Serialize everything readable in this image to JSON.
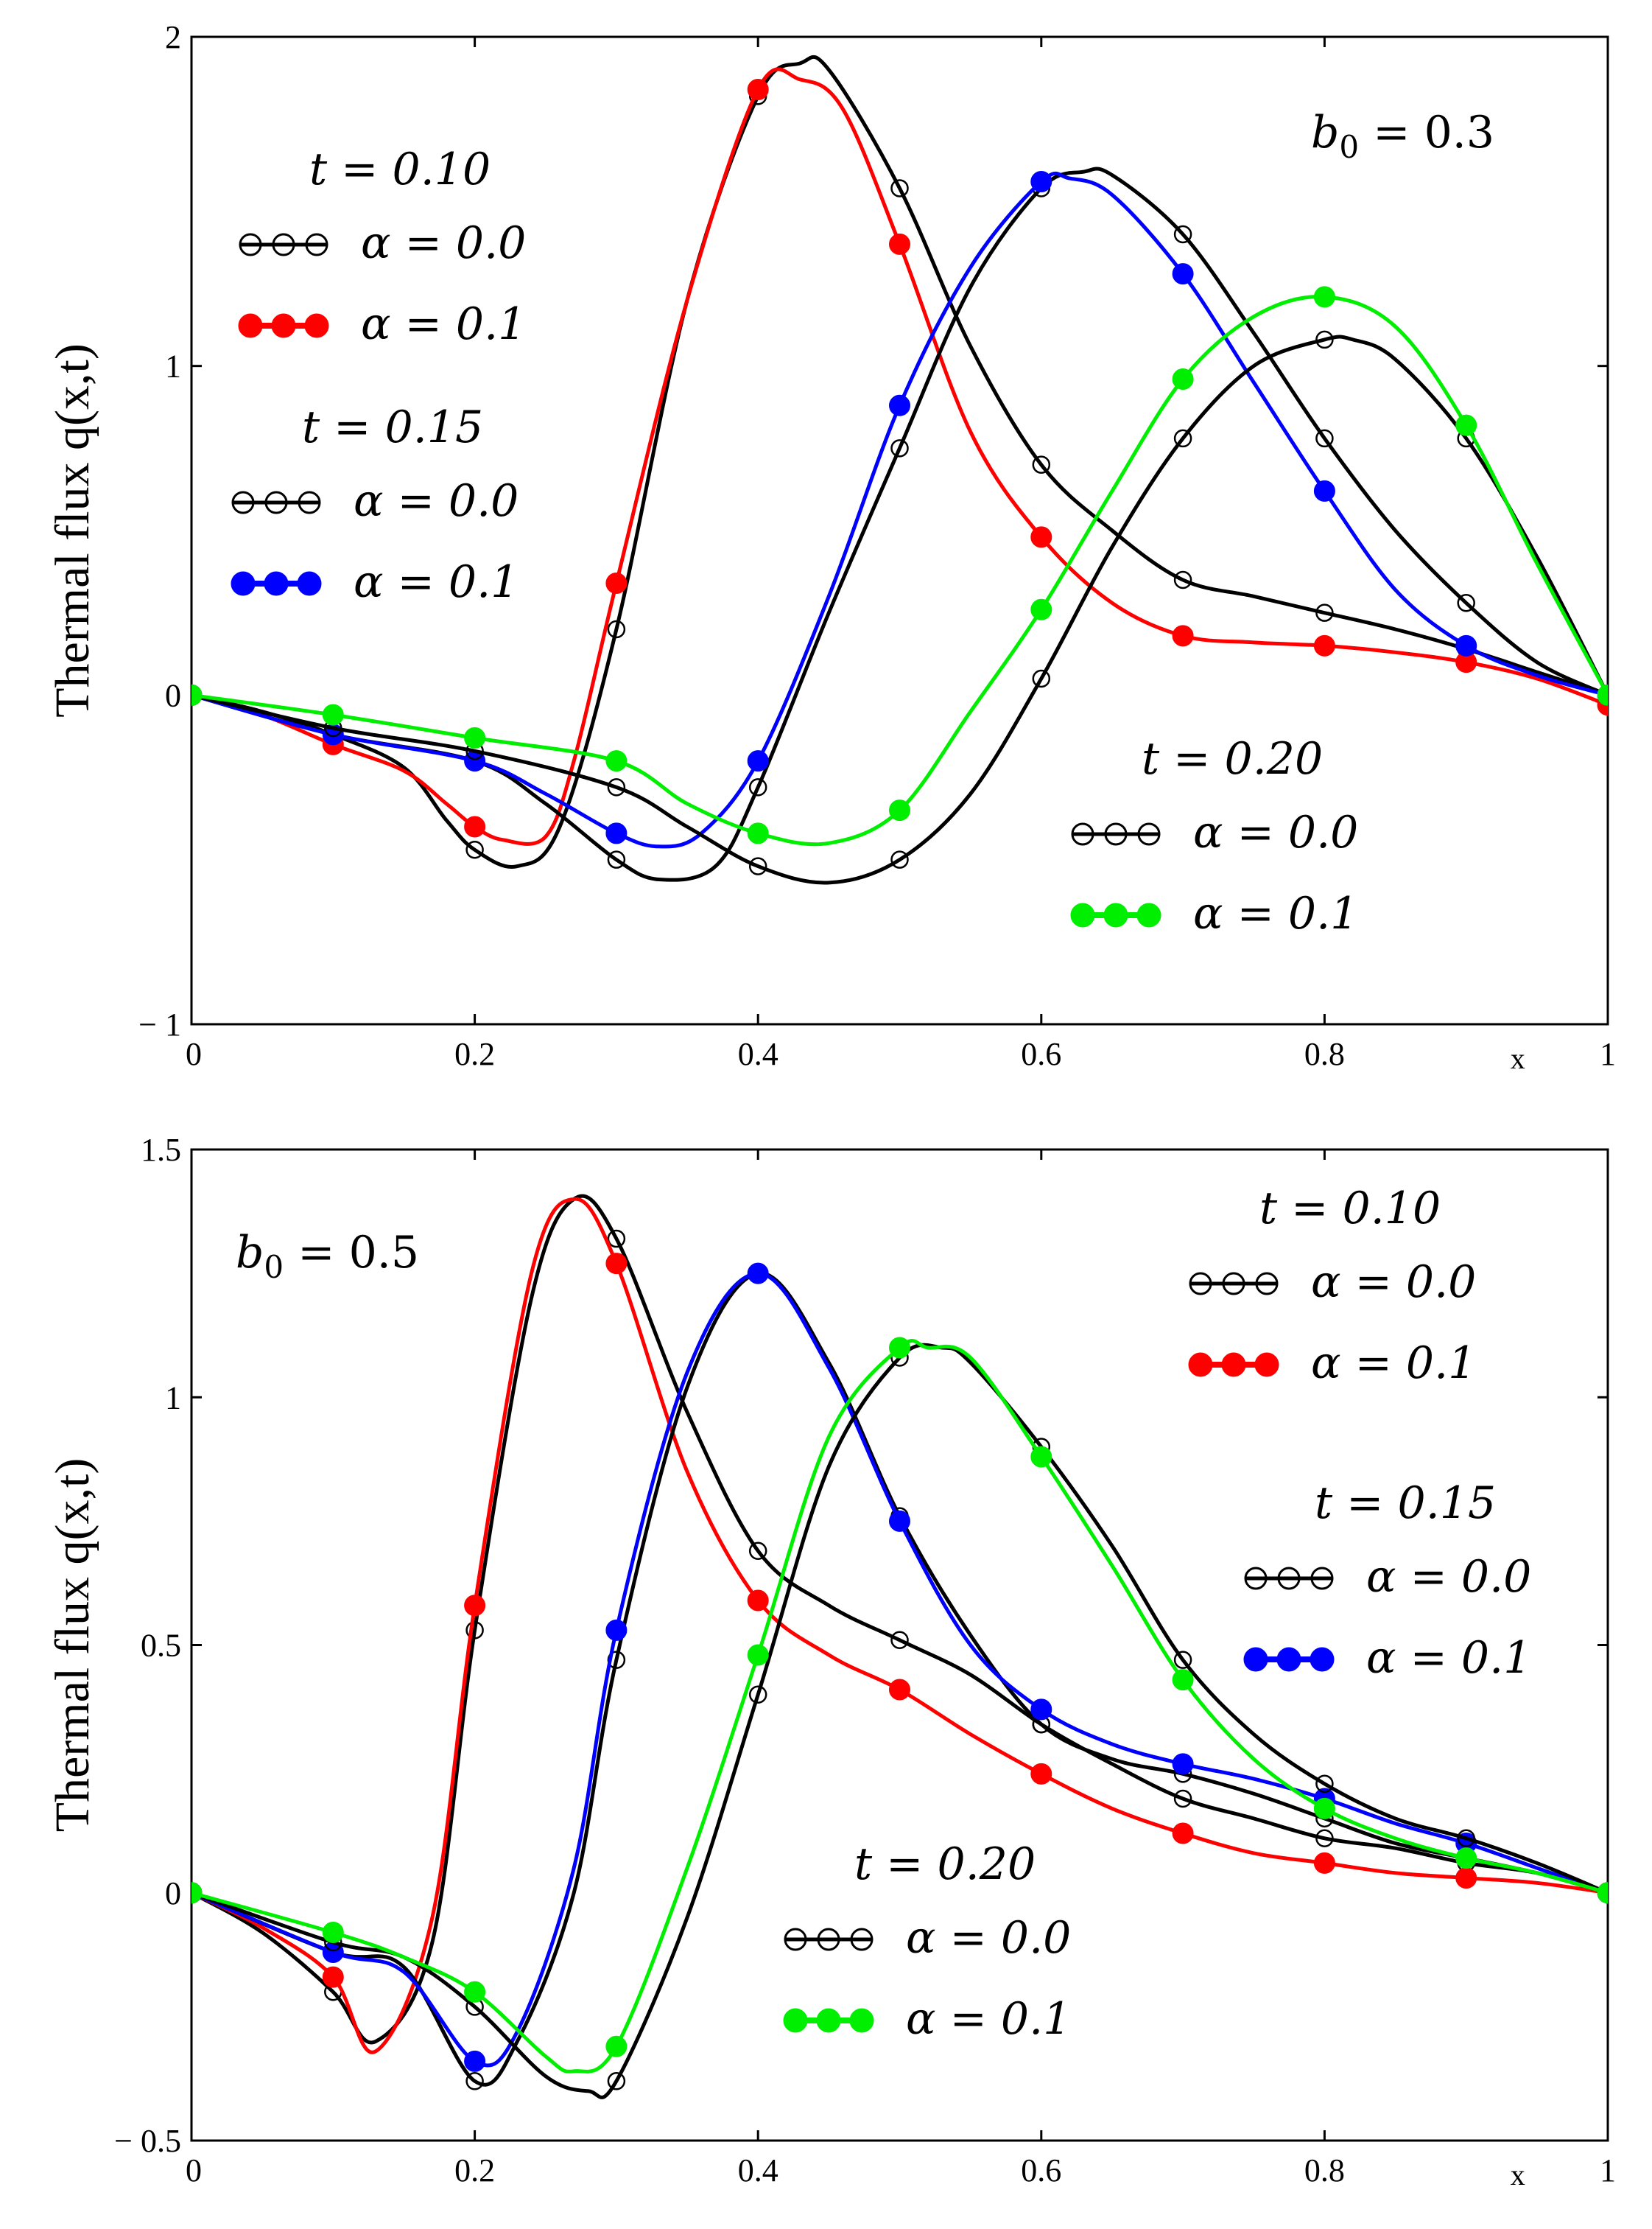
{
  "chart_data": [
    {
      "type": "line",
      "ylabel": "Thermal flux q(x,t)",
      "xlabel": "x",
      "xlim": [
        0,
        1
      ],
      "ylim": [
        -1,
        2
      ],
      "xticks": [
        "0",
        "0.2",
        "0.4",
        "0.6",
        "0.8",
        "1"
      ],
      "yticks": [
        "− 1",
        "0",
        "1",
        "2"
      ],
      "annotation": {
        "sym": "b",
        "sub": "0",
        "rest": " = 0.3"
      },
      "legend_groups": [
        {
          "title": "t = 0.10",
          "items": [
            "α = 0.0",
            "α = 0.1"
          ]
        },
        {
          "title": "t = 0.15",
          "items": [
            "α = 0.0",
            "α = 0.1"
          ]
        },
        {
          "title": "t = 0.20",
          "items": [
            "α = 0.0",
            "α = 0.1"
          ]
        }
      ],
      "colors": {
        "alpha0": "#000000",
        "t010": "#ff0000",
        "t015": "#0000ff",
        "t020": "#00ee00"
      },
      "series": [
        {
          "t": "0.10",
          "alpha": "0.0",
          "marker": "open",
          "color": "#000000",
          "x": [
            0,
            0.05,
            0.1,
            0.15,
            0.18,
            0.2,
            0.23,
            0.26,
            0.3,
            0.35,
            0.4,
            0.43,
            0.45,
            0.5,
            0.55,
            0.6,
            0.65,
            0.7,
            0.75,
            0.8,
            0.85,
            0.9,
            0.95,
            1.0
          ],
          "y": [
            0,
            -0.05,
            -0.12,
            -0.22,
            -0.38,
            -0.47,
            -0.52,
            -0.4,
            0.2,
            1.2,
            1.82,
            1.92,
            1.9,
            1.54,
            1.06,
            0.7,
            0.5,
            0.35,
            0.3,
            0.25,
            0.2,
            0.14,
            0.07,
            0
          ]
        },
        {
          "t": "0.10",
          "alpha": "0.1",
          "marker": "filled",
          "color": "#ff0000",
          "x": [
            0,
            0.05,
            0.1,
            0.15,
            0.18,
            0.2,
            0.22,
            0.25,
            0.27,
            0.3,
            0.35,
            0.4,
            0.43,
            0.46,
            0.5,
            0.55,
            0.6,
            0.65,
            0.7,
            0.75,
            0.8,
            0.85,
            0.9,
            0.95,
            1.0
          ],
          "y": [
            0,
            -0.06,
            -0.15,
            -0.23,
            -0.33,
            -0.4,
            -0.44,
            -0.43,
            -0.2,
            0.34,
            1.2,
            1.84,
            1.87,
            1.78,
            1.37,
            0.8,
            0.48,
            0.28,
            0.18,
            0.16,
            0.15,
            0.13,
            0.1,
            0.05,
            -0.03
          ]
        },
        {
          "t": "0.15",
          "alpha": "0.0",
          "marker": "open",
          "color": "#000000",
          "x": [
            0,
            0.1,
            0.2,
            0.25,
            0.3,
            0.33,
            0.37,
            0.4,
            0.45,
            0.5,
            0.55,
            0.6,
            0.63,
            0.65,
            0.7,
            0.75,
            0.8,
            0.85,
            0.9,
            0.95,
            1.0
          ],
          "y": [
            0,
            -0.12,
            -0.2,
            -0.33,
            -0.5,
            -0.56,
            -0.52,
            -0.28,
            0.25,
            0.75,
            1.24,
            1.54,
            1.59,
            1.58,
            1.4,
            1.1,
            0.78,
            0.5,
            0.28,
            0.1,
            0
          ]
        },
        {
          "t": "0.15",
          "alpha": "0.1",
          "marker": "filled",
          "color": "#0000ff",
          "x": [
            0,
            0.1,
            0.2,
            0.25,
            0.3,
            0.33,
            0.36,
            0.4,
            0.45,
            0.5,
            0.55,
            0.6,
            0.62,
            0.65,
            0.7,
            0.75,
            0.8,
            0.85,
            0.9,
            0.95,
            1.0
          ],
          "y": [
            0,
            -0.12,
            -0.2,
            -0.3,
            -0.42,
            -0.46,
            -0.42,
            -0.2,
            0.3,
            0.88,
            1.3,
            1.56,
            1.57,
            1.52,
            1.28,
            0.95,
            0.62,
            0.32,
            0.15,
            0.06,
            0
          ]
        },
        {
          "t": "0.20",
          "alpha": "0.0",
          "marker": "open",
          "color": "#000000",
          "x": [
            0,
            0.1,
            0.2,
            0.3,
            0.35,
            0.4,
            0.45,
            0.5,
            0.55,
            0.6,
            0.65,
            0.7,
            0.75,
            0.8,
            0.82,
            0.85,
            0.9,
            0.95,
            1.0
          ],
          "y": [
            0,
            -0.1,
            -0.17,
            -0.28,
            -0.4,
            -0.52,
            -0.57,
            -0.5,
            -0.3,
            0.05,
            0.45,
            0.78,
            1.0,
            1.08,
            1.08,
            1.02,
            0.78,
            0.42,
            0
          ]
        },
        {
          "t": "0.20",
          "alpha": "0.1",
          "marker": "filled",
          "color": "#00ee00",
          "x": [
            0,
            0.1,
            0.2,
            0.3,
            0.35,
            0.4,
            0.45,
            0.5,
            0.55,
            0.6,
            0.65,
            0.7,
            0.75,
            0.8,
            0.85,
            0.9,
            0.95,
            1.0
          ],
          "y": [
            0,
            -0.06,
            -0.13,
            -0.2,
            -0.33,
            -0.42,
            -0.45,
            -0.35,
            -0.05,
            0.26,
            0.62,
            0.96,
            1.15,
            1.21,
            1.12,
            0.82,
            0.4,
            0
          ]
        }
      ]
    },
    {
      "type": "line",
      "ylabel": "Thermal flux q(x,t)",
      "xlabel": "x",
      "xlim": [
        0,
        1
      ],
      "ylim": [
        -0.5,
        1.5
      ],
      "xticks": [
        "0",
        "0.2",
        "0.4",
        "0.6",
        "0.8",
        "1"
      ],
      "yticks": [
        "− 0.5",
        "0",
        "0.5",
        "1",
        "1.5"
      ],
      "annotation": {
        "sym": "b",
        "sub": "0",
        "rest": " = 0.5"
      },
      "legend_groups": [
        {
          "title": "t = 0.10",
          "items": [
            "α = 0.0",
            "α = 0.1"
          ]
        },
        {
          "title": "t = 0.15",
          "items": [
            "α = 0.0",
            "α = 0.1"
          ]
        },
        {
          "title": "t = 0.20",
          "items": [
            "α = 0.0",
            "α = 0.1"
          ]
        }
      ],
      "colors": {
        "alpha0": "#000000",
        "t010": "#ff0000",
        "t015": "#0000ff",
        "t020": "#00ee00"
      },
      "series": [
        {
          "t": "0.10",
          "alpha": "0.0",
          "marker": "open",
          "color": "#000000",
          "x": [
            0,
            0.05,
            0.1,
            0.13,
            0.17,
            0.2,
            0.24,
            0.27,
            0.3,
            0.35,
            0.4,
            0.45,
            0.5,
            0.55,
            0.6,
            0.65,
            0.7,
            0.75,
            0.8,
            0.85,
            0.9,
            0.95,
            1.0
          ],
          "y": [
            0,
            -0.08,
            -0.2,
            -0.3,
            -0.1,
            0.53,
            1.2,
            1.4,
            1.32,
            0.97,
            0.69,
            0.58,
            0.51,
            0.44,
            0.34,
            0.26,
            0.19,
            0.15,
            0.11,
            0.09,
            0.06,
            0.04,
            0
          ]
        },
        {
          "t": "0.10",
          "alpha": "0.1",
          "marker": "filled",
          "color": "#ff0000",
          "x": [
            0,
            0.05,
            0.1,
            0.13,
            0.17,
            0.2,
            0.24,
            0.27,
            0.3,
            0.35,
            0.4,
            0.45,
            0.5,
            0.55,
            0.6,
            0.65,
            0.7,
            0.75,
            0.8,
            0.85,
            0.9,
            0.95,
            1.0
          ],
          "y": [
            0,
            -0.07,
            -0.17,
            -0.32,
            -0.05,
            0.58,
            1.25,
            1.4,
            1.27,
            0.85,
            0.59,
            0.48,
            0.41,
            0.32,
            0.24,
            0.17,
            0.12,
            0.08,
            0.06,
            0.04,
            0.03,
            0.02,
            0
          ]
        },
        {
          "t": "0.15",
          "alpha": "0.0",
          "marker": "open",
          "color": "#000000",
          "x": [
            0,
            0.1,
            0.15,
            0.2,
            0.23,
            0.27,
            0.3,
            0.35,
            0.4,
            0.45,
            0.5,
            0.55,
            0.6,
            0.65,
            0.7,
            0.75,
            0.8,
            0.85,
            0.9,
            0.95,
            1.0
          ],
          "y": [
            0,
            -0.12,
            -0.15,
            -0.38,
            -0.3,
            0.0,
            0.47,
            1.02,
            1.25,
            1.07,
            0.76,
            0.52,
            0.34,
            0.27,
            0.24,
            0.2,
            0.15,
            0.1,
            0.07,
            0.04,
            0
          ]
        },
        {
          "t": "0.15",
          "alpha": "0.1",
          "marker": "filled",
          "color": "#0000ff",
          "x": [
            0,
            0.1,
            0.15,
            0.2,
            0.23,
            0.27,
            0.3,
            0.35,
            0.4,
            0.45,
            0.5,
            0.55,
            0.6,
            0.65,
            0.7,
            0.75,
            0.8,
            0.85,
            0.9,
            0.95,
            1.0
          ],
          "y": [
            0,
            -0.12,
            -0.16,
            -0.34,
            -0.28,
            0.05,
            0.53,
            1.05,
            1.25,
            1.06,
            0.75,
            0.5,
            0.37,
            0.3,
            0.26,
            0.23,
            0.19,
            0.14,
            0.1,
            0.05,
            0
          ]
        },
        {
          "t": "0.20",
          "alpha": "0.0",
          "marker": "open",
          "color": "#000000",
          "x": [
            0,
            0.1,
            0.15,
            0.2,
            0.25,
            0.28,
            0.3,
            0.35,
            0.4,
            0.45,
            0.5,
            0.53,
            0.55,
            0.6,
            0.65,
            0.7,
            0.75,
            0.8,
            0.85,
            0.9,
            0.95,
            1.0
          ],
          "y": [
            0,
            -0.1,
            -0.13,
            -0.23,
            -0.37,
            -0.4,
            -0.38,
            -0.05,
            0.4,
            0.86,
            1.08,
            1.1,
            1.07,
            0.9,
            0.7,
            0.47,
            0.32,
            0.22,
            0.15,
            0.11,
            0.06,
            0
          ]
        },
        {
          "t": "0.20",
          "alpha": "0.1",
          "marker": "filled",
          "color": "#00ee00",
          "x": [
            0,
            0.1,
            0.15,
            0.2,
            0.25,
            0.27,
            0.3,
            0.35,
            0.4,
            0.45,
            0.5,
            0.52,
            0.55,
            0.6,
            0.65,
            0.7,
            0.75,
            0.8,
            0.85,
            0.9,
            0.95,
            1.0
          ],
          "y": [
            0,
            -0.08,
            -0.13,
            -0.2,
            -0.33,
            -0.36,
            -0.31,
            0.05,
            0.48,
            0.92,
            1.1,
            1.1,
            1.08,
            0.88,
            0.66,
            0.43,
            0.27,
            0.17,
            0.11,
            0.07,
            0.04,
            0
          ]
        }
      ]
    }
  ]
}
